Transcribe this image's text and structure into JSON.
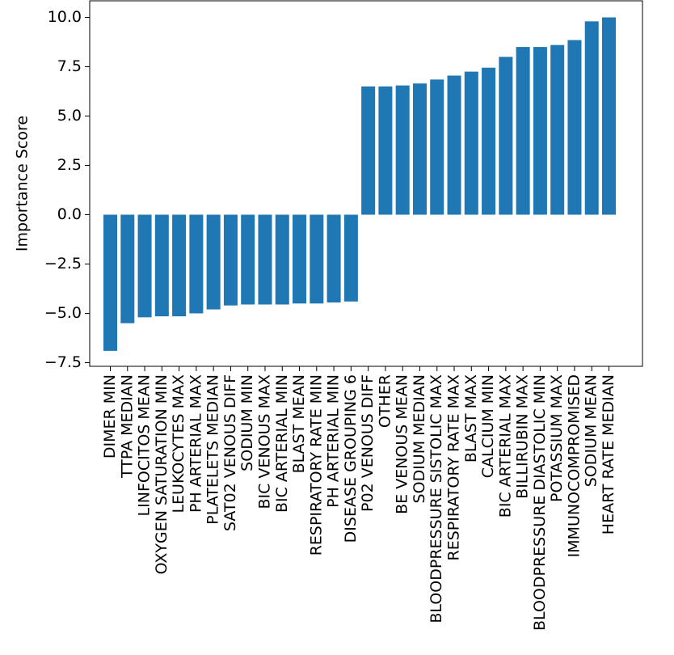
{
  "chart_data": {
    "type": "bar",
    "ylabel": "Importance Score",
    "xlabel": "",
    "ylim": [
      -7.8,
      10.0
    ],
    "yticks": [
      10.0,
      7.5,
      5.0,
      2.5,
      0.0,
      -2.5,
      -5.0,
      -7.5
    ],
    "ytick_labels": [
      "10.0",
      "7.5",
      "5.0",
      "2.5",
      "0.0",
      "−2.5",
      "−5.0",
      "−7.5"
    ],
    "bar_color": "#1f77b4",
    "grid": false,
    "categories": [
      "DIMER MIN",
      "TTPA MEDIAN",
      "LINFOCITOS MEAN",
      "OXYGEN SATURATION MIN",
      "LEUKOCYTES MAX",
      "PH ARTERIAL MAX",
      "PLATELETS MEDIAN",
      "SAT02 VENOUS DIFF",
      "SODIUM MIN",
      "BIC VENOUS MAX",
      "BIC ARTERIAL MIN",
      "BLAST MEAN",
      "RESPIRATORY RATE MIN",
      "PH ARTERIAL MIN",
      "DISEASE GROUPING 6",
      "P02 VENOUS DIFF",
      "OTHER",
      "BE VENOUS MEAN",
      "SODIUM MEDIAN",
      "BLOODPRESSURE SISTOLIC MAX",
      "RESPIRATORY RATE MAX",
      "BLAST MAX",
      "CALCIUM MIN",
      "BIC ARTERIAL MAX",
      "BILLIRUBIN MAX",
      "BLOODPRESSURE DIASTOLIC MIN",
      "POTASSIUM MAX",
      "IMMUNOCOMPROMISED",
      "SODIUM MEAN",
      "HEART RATE MEDIAN"
    ],
    "values": [
      -6.9,
      -5.5,
      -5.2,
      -5.15,
      -5.15,
      -5.0,
      -4.8,
      -4.6,
      -4.55,
      -4.55,
      -4.55,
      -4.5,
      -4.5,
      -4.45,
      -4.4,
      6.5,
      6.5,
      6.55,
      6.65,
      6.85,
      7.05,
      7.25,
      7.45,
      8.0,
      8.5,
      8.5,
      8.6,
      8.85,
      9.8,
      10.0
    ]
  }
}
